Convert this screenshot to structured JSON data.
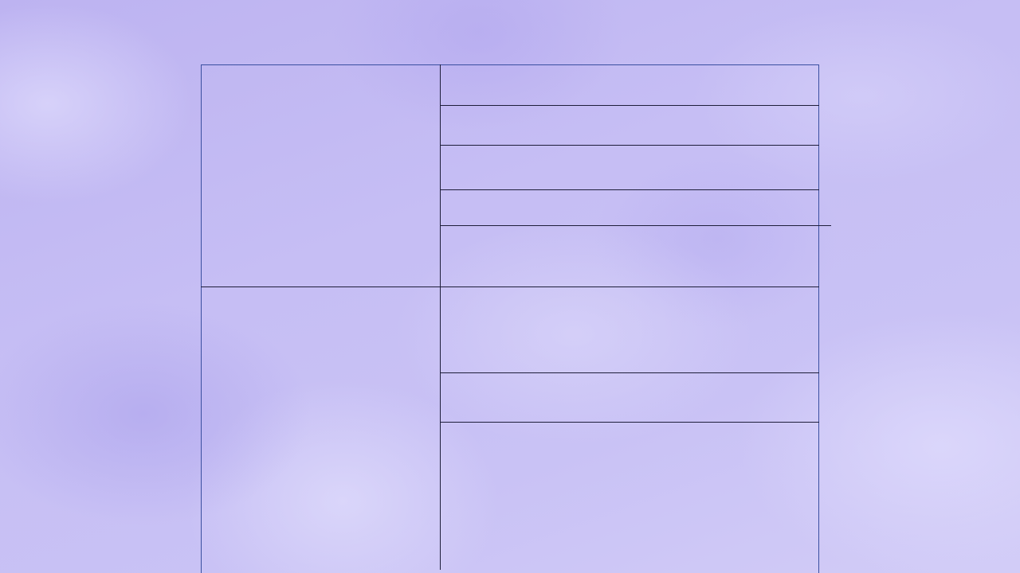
{
  "page": {
    "background": "#bfb6f2",
    "frame_color": "#3a4fa0",
    "rule_color": "#1e1e3a"
  }
}
